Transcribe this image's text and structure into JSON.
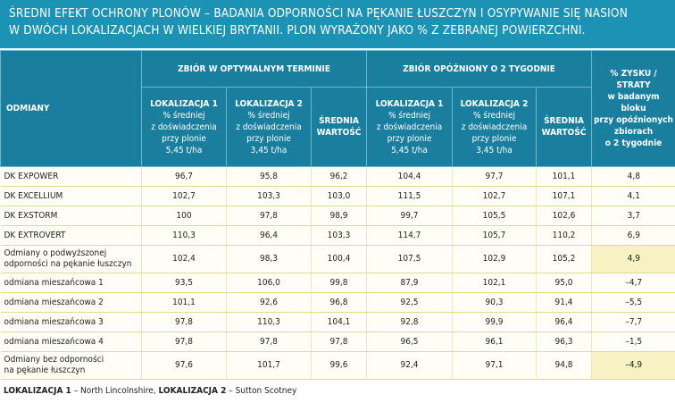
{
  "title": [
    "ŚREDNI EFEKT OCHRONY PLONÓW – BADANIA ODPORNOŚCI NA PĘKANIE ŁUSZCZYN I OSYPYWANIE SIĘ NASION",
    "W DWÓCH LOKALIZACJACH W WIELKIEJ BRYTANII. PLON WYRAŻONY JAKO % Z ZEBRANEJ POWIERZCHNI."
  ],
  "table": {
    "corner": "ODMIANY",
    "groups": [
      "ZBIÓR W OPTYMALNYM TERMINIE",
      "ZBIÓR OPÓŹNIONY O 2 TYGODNIE"
    ],
    "last_header": [
      "% ZYSKU / STRATY",
      "w badanym bloku",
      "przy opóźnionych",
      "zbiorach",
      "o 2 tygodnie"
    ],
    "columns": [
      {
        "head": [
          "LOKALIZACJA 1"
        ],
        "lines": [
          "% średniej",
          "z doświadczenia",
          "przy plonie",
          "5,45 t/ha"
        ]
      },
      {
        "head": [
          "LOKALIZACJA 2"
        ],
        "lines": [
          "% średniej",
          "z doświadczenia",
          "przy plonie",
          "3,45 t/ha"
        ]
      },
      {
        "head": [
          "ŚREDNIA",
          "WARTOŚĆ"
        ],
        "lines": []
      },
      {
        "head": [
          "LOKALIZACJA 1"
        ],
        "lines": [
          "% średniej",
          "z doświadczenia",
          "przy plonie",
          "5,45 t/ha"
        ]
      },
      {
        "head": [
          "LOKALIZACJA 2"
        ],
        "lines": [
          "% średniej",
          "z doświadczenia",
          "przy plonie",
          "3,45 t/ha"
        ]
      },
      {
        "head": [
          "ŚREDNIA",
          "WARTOŚĆ"
        ],
        "lines": []
      }
    ],
    "rows": [
      {
        "name": [
          "DK EXPOWER"
        ],
        "values": [
          "96,7",
          "95,8",
          "96,2",
          "104,4",
          "97,7",
          "101,1",
          "4,8"
        ]
      },
      {
        "name": [
          "DK EXCELLIUM"
        ],
        "values": [
          "102,7",
          "103,3",
          "103,0",
          "111,5",
          "102,7",
          "107,1",
          "4,1"
        ]
      },
      {
        "name": [
          "DK EXSTORM"
        ],
        "values": [
          "100",
          "97,8",
          "98,9",
          "99,7",
          "105,5",
          "102,6",
          "3,7"
        ]
      },
      {
        "name": [
          "DK EXTROVERT"
        ],
        "values": [
          "110,3",
          "96,4",
          "103,3",
          "114,7",
          "105,7",
          "110,2",
          "6,9"
        ]
      },
      {
        "name": [
          "Odmiany o podwyższonej",
          "odporności na pękanie łuszczyn"
        ],
        "values": [
          "102,4",
          "98,3",
          "100,4",
          "107,5",
          "102,9",
          "105,2",
          "4,9"
        ]
      },
      {
        "name": [
          "odmiana mieszańcowa 1"
        ],
        "values": [
          "93,5",
          "106,0",
          "99,8",
          "87,9",
          "102,1",
          "95,0",
          "–4,7"
        ]
      },
      {
        "name": [
          "odmiana mieszańcowa 2"
        ],
        "values": [
          "101,1",
          "92,6",
          "96,8",
          "92,5",
          "90,3",
          "91,4",
          "–5,5"
        ]
      },
      {
        "name": [
          "odmiana mieszańcowa 3"
        ],
        "values": [
          "97,8",
          "110,3",
          "104,1",
          "92,8",
          "99,9",
          "96,4",
          "–7,7"
        ]
      },
      {
        "name": [
          "odmiana mieszańcowa 4"
        ],
        "values": [
          "97,8",
          "97,8",
          "97,8",
          "96,5",
          "96,1",
          "96,3",
          "–1,5"
        ]
      },
      {
        "name": [
          "Odmiany bez odporności",
          "na pękanie łuszczyn"
        ],
        "values": [
          "97,6",
          "101,7",
          "99,6",
          "92,4",
          "97,1",
          "94,8",
          "–4,9"
        ]
      }
    ]
  },
  "footer": [
    {
      "text": "LOKALIZACJA 1",
      "bold": true
    },
    {
      "text": "– North Lincolnshire,",
      "bold": false
    },
    {
      "text": "LOKALIZACJA 2",
      "bold": true
    },
    {
      "text": "– Sutton Scotney",
      "bold": false
    }
  ]
}
